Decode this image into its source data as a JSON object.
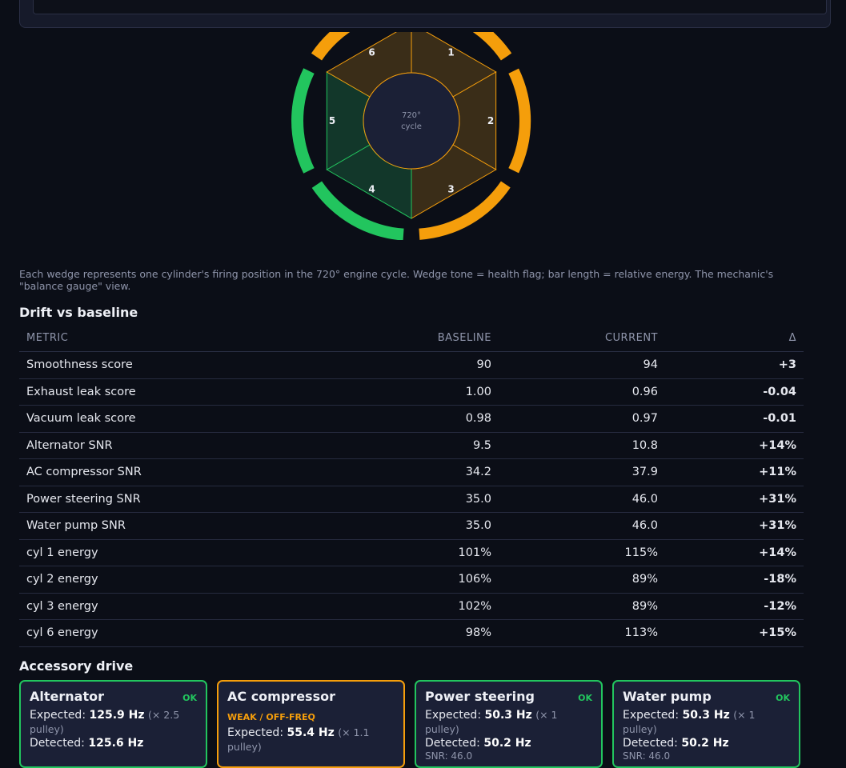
{
  "wheel": {
    "center_line1": "720°",
    "center_line2": "cycle",
    "cylinders": [
      {
        "label": "1",
        "status": "warn",
        "energy_pct": 115
      },
      {
        "label": "2",
        "status": "warn",
        "energy_pct": 89
      },
      {
        "label": "3",
        "status": "warn",
        "energy_pct": 89
      },
      {
        "label": "4",
        "status": "ok",
        "energy_pct": 100
      },
      {
        "label": "5",
        "status": "ok",
        "energy_pct": 100
      },
      {
        "label": "6",
        "status": "warn",
        "energy_pct": 113
      }
    ]
  },
  "caption": "Each wedge represents one cylinder's firing position in the 720° engine cycle. Wedge tone = health flag; bar length = relative energy. The mechanic's \"balance gauge\" view.",
  "drift": {
    "title": "Drift vs baseline",
    "headers": {
      "metric": "METRIC",
      "baseline": "BASELINE",
      "current": "CURRENT",
      "delta": "Δ"
    },
    "rows": [
      {
        "metric": "Smoothness score",
        "baseline": "90",
        "current": "94",
        "delta": "+3",
        "tone": "good"
      },
      {
        "metric": "Exhaust leak score",
        "baseline": "1.00",
        "current": "0.96",
        "delta": "-0.04",
        "tone": "good"
      },
      {
        "metric": "Vacuum leak score",
        "baseline": "0.98",
        "current": "0.97",
        "delta": "-0.01",
        "tone": "good"
      },
      {
        "metric": "Alternator SNR",
        "baseline": "9.5",
        "current": "10.8",
        "delta": "+14%",
        "tone": "good"
      },
      {
        "metric": "AC compressor SNR",
        "baseline": "34.2",
        "current": "37.9",
        "delta": "+11%",
        "tone": "good"
      },
      {
        "metric": "Power steering SNR",
        "baseline": "35.0",
        "current": "46.0",
        "delta": "+31%",
        "tone": "good"
      },
      {
        "metric": "Water pump SNR",
        "baseline": "35.0",
        "current": "46.0",
        "delta": "+31%",
        "tone": "good"
      },
      {
        "metric": "cyl 1 energy",
        "baseline": "101%",
        "current": "115%",
        "delta": "+14%",
        "tone": "warn"
      },
      {
        "metric": "cyl 2 energy",
        "baseline": "106%",
        "current": "89%",
        "delta": "-18%",
        "tone": "warn"
      },
      {
        "metric": "cyl 3 energy",
        "baseline": "102%",
        "current": "89%",
        "delta": "-12%",
        "tone": "warn"
      },
      {
        "metric": "cyl 6 energy",
        "baseline": "98%",
        "current": "113%",
        "delta": "+15%",
        "tone": "warn"
      }
    ]
  },
  "accessory": {
    "title": "Accessory drive",
    "cards": [
      {
        "name": "Alternator",
        "status": "OK",
        "substatus": "",
        "expected_label": "Expected:",
        "expected_value": "125.9 Hz",
        "ratio": "(× 2.5 pulley)",
        "detected_label": "Detected:",
        "detected_value": "125.6 Hz",
        "snr": "",
        "tone": "good"
      },
      {
        "name": "AC compressor",
        "status": "",
        "substatus": "WEAK / OFF-FREQ",
        "expected_label": "Expected:",
        "expected_value": "55.4 Hz",
        "ratio": "(× 1.1 pulley)",
        "detected_label": "",
        "detected_value": "",
        "snr": "",
        "tone": "warn"
      },
      {
        "name": "Power steering",
        "status": "OK",
        "substatus": "",
        "expected_label": "Expected:",
        "expected_value": "50.3 Hz",
        "ratio": "(× 1 pulley)",
        "detected_label": "Detected:",
        "detected_value": "50.2 Hz",
        "snr": "SNR: 46.0",
        "tone": "good"
      },
      {
        "name": "Water pump",
        "status": "OK",
        "substatus": "",
        "expected_label": "Expected:",
        "expected_value": "50.3 Hz",
        "ratio": "(× 1 pulley)",
        "detected_label": "Detected:",
        "detected_value": "50.2 Hz",
        "snr": "SNR: 46.0",
        "tone": "good"
      }
    ]
  },
  "colors": {
    "ok": "#22c55e",
    "warn": "#f59e0b",
    "ok_fill": "#12372a",
    "warn_fill": "#3a2d18"
  }
}
